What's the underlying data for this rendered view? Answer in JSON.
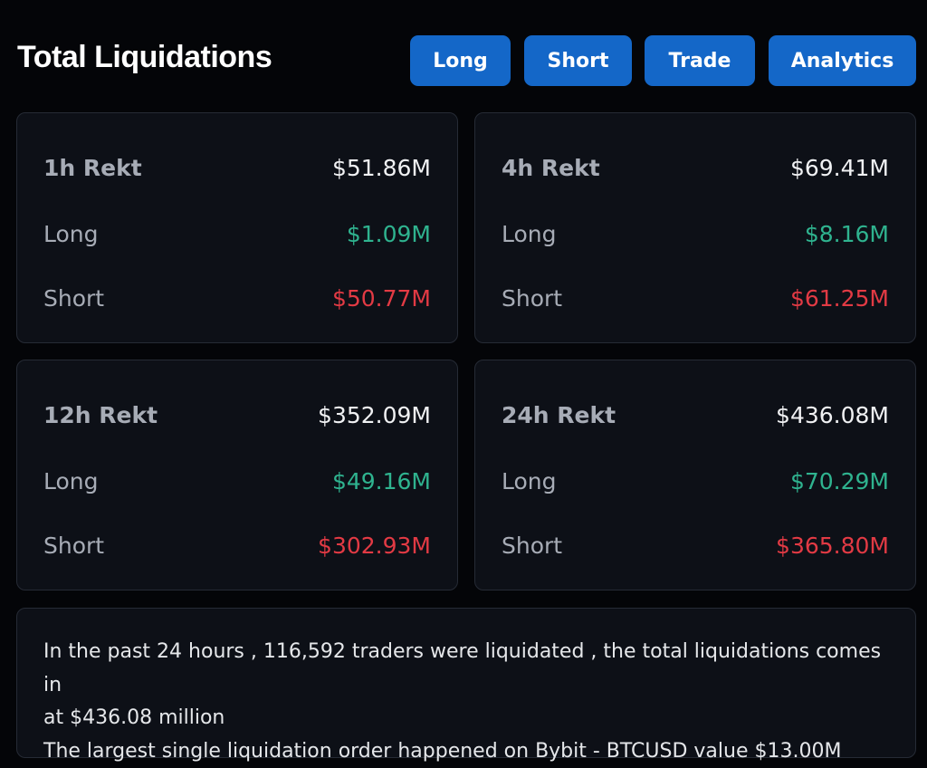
{
  "header": {
    "title": "Total Liquidations",
    "buttons": [
      "Long",
      "Short",
      "Trade",
      "Analytics"
    ]
  },
  "cards": [
    {
      "period": "1h Rekt",
      "total": "$51.86M",
      "long_label": "Long",
      "long": "$1.09M",
      "short_label": "Short",
      "short": "$50.77M"
    },
    {
      "period": "4h Rekt",
      "total": "$69.41M",
      "long_label": "Long",
      "long": "$8.16M",
      "short_label": "Short",
      "short": "$61.25M"
    },
    {
      "period": "12h Rekt",
      "total": "$352.09M",
      "long_label": "Long",
      "long": "$49.16M",
      "short_label": "Short",
      "short": "$302.93M"
    },
    {
      "period": "24h Rekt",
      "total": "$436.08M",
      "long_label": "Long",
      "long": "$70.29M",
      "short_label": "Short",
      "short": "$365.80M"
    }
  ],
  "summary": {
    "line1": "In the past 24 hours , 116,592 traders were liquidated , the total liquidations comes in",
    "line2": "at $436.08 million",
    "line3": "The largest single liquidation order happened on Bybit - BTCUSD value $13.00M"
  },
  "colors": {
    "button": "#1467c8",
    "long": "#2fb38f",
    "short": "#e23a44"
  }
}
